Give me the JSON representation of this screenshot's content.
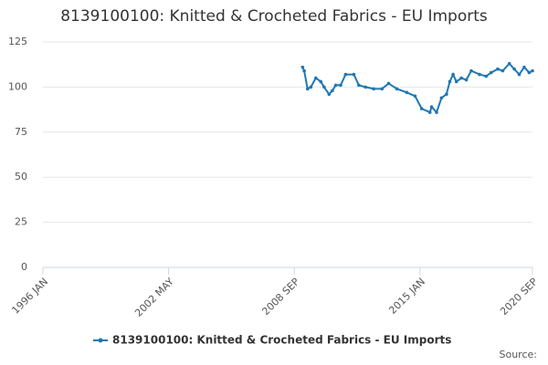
{
  "chart_data": {
    "type": "line",
    "title": "8139100100: Knitted & Crocheted Fabrics - EU Imports",
    "source": "Source:",
    "x": [
      "2009 FEB",
      "2009 MAR",
      "2009 MAY",
      "2009 JUL",
      "2009 OCT",
      "2010 JAN",
      "2010 MAR",
      "2010 JUN",
      "2010 AUG",
      "2010 OCT",
      "2011 JAN",
      "2011 APR",
      "2011 SEP",
      "2011 DEC",
      "2012 APR",
      "2012 SEP",
      "2013 FEB",
      "2013 JUN",
      "2013 NOV",
      "2014 MAY",
      "2014 OCT",
      "2015 FEB",
      "2015 JUL",
      "2015 AUG",
      "2015 NOV",
      "2016 FEB",
      "2016 MAY",
      "2016 JUL",
      "2016 SEP",
      "2016 NOV",
      "2017 FEB",
      "2017 MAY",
      "2017 AUG",
      "2018 JAN",
      "2018 MAY",
      "2018 AUG",
      "2018 DEC",
      "2019 MAR",
      "2019 JUL",
      "2019 OCT",
      "2020 JAN",
      "2020 APR",
      "2020 JUL",
      "2020 SEP"
    ],
    "series": [
      {
        "name": "8139100100: Knitted & Crocheted Fabrics - EU Imports",
        "color": "#1f77b4",
        "values": [
          111,
          109,
          99,
          100,
          105,
          103,
          100,
          96,
          98,
          101,
          101,
          107,
          107,
          101,
          100,
          99,
          99,
          102,
          99,
          97,
          95,
          88,
          86,
          89,
          86,
          94,
          96,
          103,
          107,
          103,
          105,
          104,
          109,
          107,
          106,
          108,
          110,
          109,
          113,
          110,
          107,
          111,
          108,
          109
        ]
      }
    ],
    "xlim": [
      "1996 JAN",
      "2020 SEP"
    ],
    "xticks": [
      "1996 JAN",
      "2002 MAY",
      "2008 SEP",
      "2015 JAN",
      "2020 SEP"
    ],
    "ylim": [
      0,
      125
    ],
    "yticks": [
      0,
      25,
      50,
      75,
      100,
      125
    ],
    "grid": true
  }
}
